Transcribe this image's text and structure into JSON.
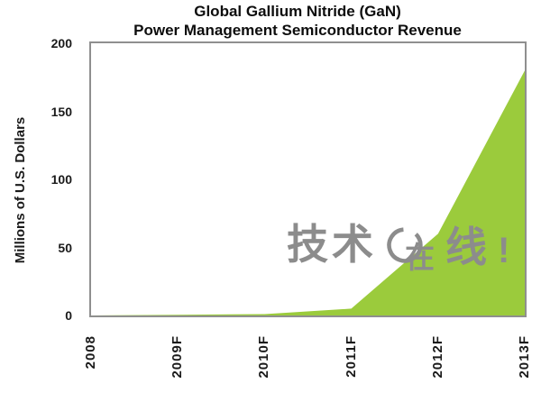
{
  "title": {
    "line1": "Global Gallium Nitride (GaN)",
    "line2": "Power Management Semiconductor Revenue"
  },
  "chart_data": {
    "type": "area",
    "title": "Global Gallium Nitride (GaN) Power Management Semiconductor Revenue",
    "categories": [
      "2008",
      "2009F",
      "2010F",
      "2011F",
      "2012F",
      "2013F"
    ],
    "values": [
      0,
      0.5,
      1,
      5,
      60,
      180
    ],
    "series_name": "GaN power management semiconductor revenue",
    "xlabel": "",
    "ylabel": "Millions of U.S. Dollars",
    "ylim": [
      0,
      200
    ],
    "yticks": [
      0,
      50,
      100,
      150,
      200
    ],
    "grid": false,
    "legend": false,
    "area_color": "#9bcb3c",
    "axis_border_color": "#8f8f8f",
    "tick_label_color": "#1a1a1a"
  },
  "watermark": {
    "text_left": "技术",
    "text_zai": "在",
    "text_right": "线",
    "exclaim": "!",
    "circle_icon": "open-circle",
    "color": "#8c8c8c"
  }
}
